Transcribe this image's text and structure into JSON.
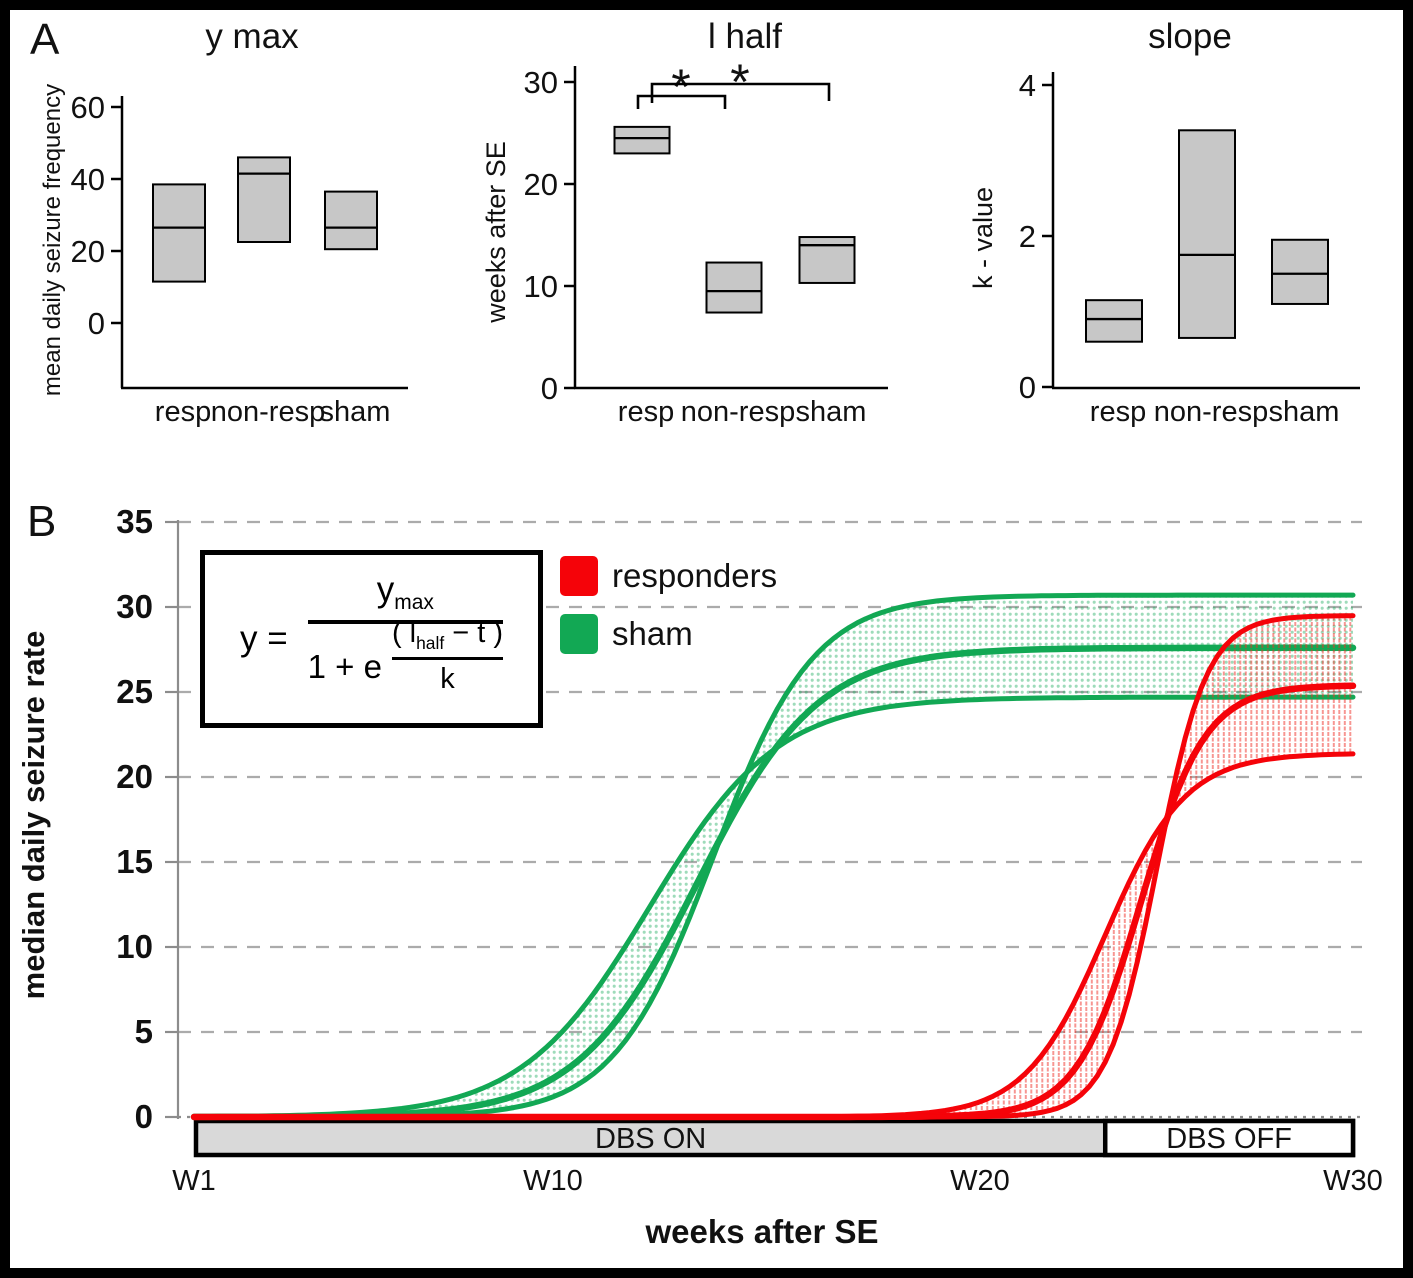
{
  "figure": {
    "panel_a_label": "A",
    "panel_b_label": "B"
  },
  "colors": {
    "responders": "#f50309",
    "sham": "#12a854",
    "box_fill": "#c7c7c7",
    "box_border": "#000000",
    "grid": "#ababab",
    "axis_b": "#8c8c8c",
    "dbs_bar_fill": "#d9d9d9",
    "text": "#111111"
  },
  "formula": {
    "lhs": "y =",
    "num_base": "y",
    "num_sub": "max",
    "denom_prefix": "1 + e",
    "exp_num_open": "( l",
    "exp_num_sub": "half",
    "exp_num_close": " − t )",
    "exp_den": "k"
  },
  "legend": [
    {
      "label": "responders",
      "color_key": "responders"
    },
    {
      "label": "sham",
      "color_key": "sham"
    }
  ],
  "chart_data": [
    {
      "type": "box",
      "title": "y max",
      "ylabel": "mean daily seizure frequency",
      "yticks": [
        0,
        20,
        40,
        60
      ],
      "ylim": [
        -18,
        60
      ],
      "categories": [
        "resp",
        "non-resp",
        "sham"
      ],
      "boxes": [
        {
          "low": 11.5,
          "median": 26.5,
          "high": 38.5
        },
        {
          "low": 22.5,
          "median": 41.5,
          "high": 46.0
        },
        {
          "low": 20.5,
          "median": 26.5,
          "high": 36.5
        }
      ]
    },
    {
      "type": "box",
      "title": "l half",
      "ylabel": "weeks after SE",
      "yticks": [
        0,
        10,
        20,
        30
      ],
      "ylim": [
        0,
        30
      ],
      "categories": [
        "resp",
        "non-resp",
        "sham"
      ],
      "boxes": [
        {
          "low": 23.0,
          "median": 24.5,
          "high": 25.6
        },
        {
          "low": 7.4,
          "median": 9.5,
          "high": 12.3
        },
        {
          "low": 10.3,
          "median": 14.0,
          "high": 14.8
        }
      ],
      "significance": [
        {
          "pair": "resp vs non-resp",
          "symbol": "*"
        },
        {
          "pair": "resp vs sham",
          "symbol": "*"
        }
      ]
    },
    {
      "type": "box",
      "title": "slope",
      "ylabel": "k - value",
      "yticks": [
        0,
        2,
        4
      ],
      "ylim": [
        0,
        4
      ],
      "categories": [
        "resp",
        "non-resp",
        "sham"
      ],
      "boxes": [
        {
          "low": 0.6,
          "median": 0.9,
          "high": 1.15
        },
        {
          "low": 0.65,
          "median": 1.75,
          "high": 3.4
        },
        {
          "low": 1.1,
          "median": 1.5,
          "high": 1.95
        }
      ]
    },
    {
      "type": "area",
      "title": "",
      "ylabel": "median daily seizure rate",
      "xlabel": "weeks after SE",
      "yticks": [
        0,
        5,
        10,
        15,
        20,
        25,
        30,
        35
      ],
      "ylim": [
        0,
        35
      ],
      "xlim_weeks": [
        1,
        30
      ],
      "xticks": [
        {
          "label": "W1",
          "week": 1
        },
        {
          "label": "W10",
          "week": 10
        },
        {
          "label": "W20",
          "week": 20
        },
        {
          "label": "W30",
          "week": 30
        }
      ],
      "grid": "dashed horizontal",
      "legend_position": "upper left",
      "series": [
        {
          "name": "sham",
          "color_key": "sham",
          "model": "y = ymax / (1 + e^((lhalf - t)/k))",
          "curves": {
            "lower": {
              "ymax": 24.7,
              "lhalf": 12.4,
              "k": 1.6
            },
            "median": {
              "ymax": 27.6,
              "lhalf": 13.6,
              "k": 1.5
            },
            "upper": {
              "ymax": 30.7,
              "lhalf": 14.0,
              "k": 1.25
            }
          }
        },
        {
          "name": "responders",
          "color_key": "responders",
          "model": "y = ymax / (1 + e^((lhalf - t)/k))",
          "curves": {
            "lower": {
              "ymax": 21.4,
              "lhalf": 23.8,
              "k": 1.0
            },
            "median": {
              "ymax": 25.4,
              "lhalf": 24.7,
              "k": 0.8
            },
            "upper": {
              "ymax": 29.5,
              "lhalf": 25.1,
              "k": 0.62
            }
          }
        }
      ],
      "dbs": {
        "on_label": "DBS ON",
        "off_label": "DBS OFF",
        "start_week": 1,
        "switch_week": 23.8,
        "end_week": 30
      }
    }
  ]
}
